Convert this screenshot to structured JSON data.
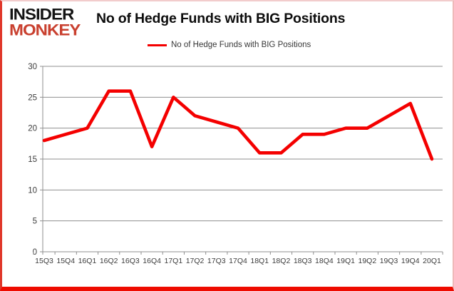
{
  "logo": {
    "line1": "INSIDER",
    "line2": "MONKEY"
  },
  "title": "No of Hedge Funds with BIG Positions",
  "legend": {
    "label": "No of Hedge Funds with BIG Positions"
  },
  "colors": {
    "line": "#f40000",
    "grid": "#8f8f8f",
    "axis_text": "#3d3d3d",
    "logo_red": "#c9402f",
    "border_red": "#ee0b00"
  },
  "chart_data": {
    "type": "line",
    "title": "No of Hedge Funds with BIG Positions",
    "categories": [
      "15Q3",
      "15Q4",
      "16Q1",
      "16Q2",
      "16Q3",
      "16Q4",
      "17Q1",
      "17Q2",
      "17Q3",
      "17Q4",
      "18Q1",
      "18Q2",
      "18Q3",
      "18Q4",
      "19Q1",
      "19Q2",
      "19Q3",
      "19Q4",
      "20Q1"
    ],
    "series": [
      {
        "name": "No of Hedge Funds with BIG Positions",
        "values": [
          18,
          19,
          20,
          26,
          26,
          17,
          25,
          22,
          21,
          20,
          16,
          16,
          19,
          19,
          20,
          20,
          22,
          24,
          15
        ]
      }
    ],
    "xlabel": "",
    "ylabel": "",
    "ylim": [
      0,
      30
    ],
    "ytick_step": 5,
    "yticks": [
      0,
      5,
      10,
      15,
      20,
      25,
      30
    ],
    "grid": true,
    "legend_position": "top"
  }
}
